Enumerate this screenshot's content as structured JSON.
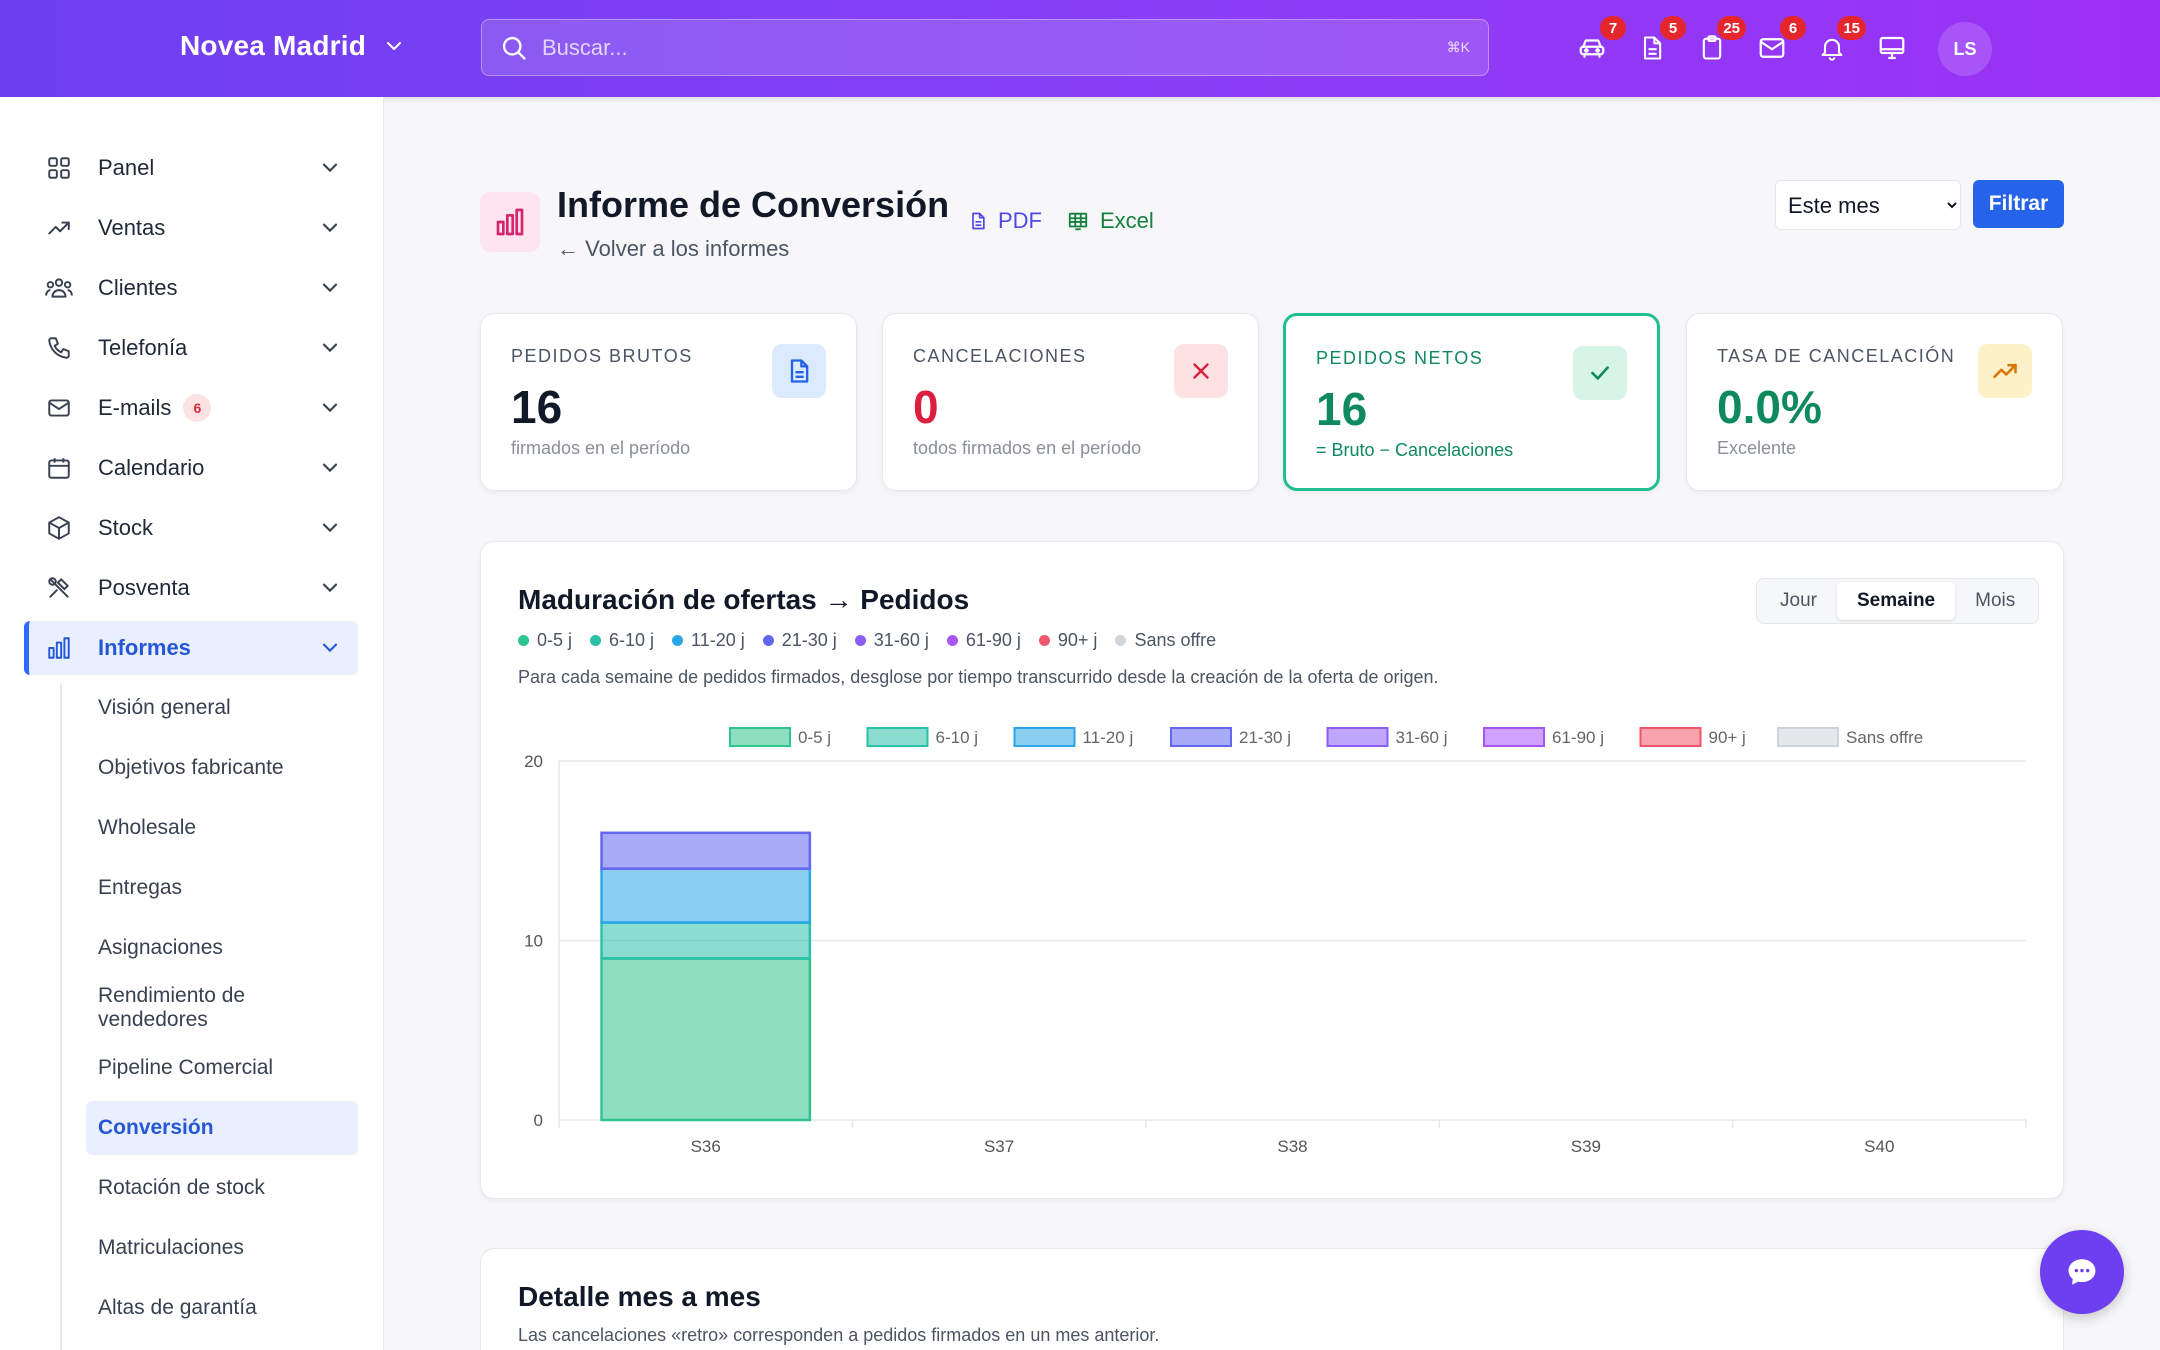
{
  "header": {
    "brand": "Novea Madrid",
    "search_placeholder": "Buscar...",
    "search_shortcut": "⌘K",
    "icons": [
      {
        "name": "car-icon",
        "badge": "7"
      },
      {
        "name": "document-icon",
        "badge": "5"
      },
      {
        "name": "clipboard-icon",
        "badge": "25"
      },
      {
        "name": "mail-icon",
        "badge": "6"
      },
      {
        "name": "bell-icon",
        "badge": "15"
      },
      {
        "name": "monitor-icon",
        "badge": ""
      }
    ],
    "avatar": "LS"
  },
  "sidebar": {
    "items": [
      {
        "label": "Panel",
        "icon": "grid-icon"
      },
      {
        "label": "Ventas",
        "icon": "trend-icon"
      },
      {
        "label": "Clientes",
        "icon": "users-icon"
      },
      {
        "label": "Telefonía",
        "icon": "phone-icon"
      },
      {
        "label": "E-mails",
        "icon": "mail-icon",
        "badge": "6"
      },
      {
        "label": "Calendario",
        "icon": "calendar-icon"
      },
      {
        "label": "Stock",
        "icon": "box-icon"
      },
      {
        "label": "Posventa",
        "icon": "tools-icon"
      },
      {
        "label": "Informes",
        "icon": "bar-chart-icon",
        "active": true
      }
    ],
    "sub_items": [
      "Visión general",
      "Objetivos fabricante",
      "Wholesale",
      "Entregas",
      "Asignaciones",
      "Rendimiento de vendedores",
      "Pipeline Comercial",
      "Conversión",
      "Rotación de stock",
      "Matriculaciones",
      "Altas de garantía"
    ],
    "active_sub": "Conversión"
  },
  "page": {
    "title": "Informe de Conversión",
    "back": "← Volver a los informes",
    "pdf": "PDF",
    "excel": "Excel",
    "period": "Este mes",
    "filter": "Filtrar"
  },
  "stats": [
    {
      "label": "PEDIDOS BRUTOS",
      "value": "16",
      "sub": "firmados en el período",
      "color": "#111827",
      "icon": "document-icon"
    },
    {
      "label": "CANCELACIONES",
      "value": "0",
      "sub": "todos firmados en el período",
      "color": "#dc1f3c",
      "icon": "x-icon"
    },
    {
      "label": "PEDIDOS NETOS",
      "value": "16",
      "sub": "= Bruto − Cancelaciones",
      "color": "#0f8a5f",
      "icon": "check-icon"
    },
    {
      "label": "TASA DE CANCELACIÓN",
      "value": "0.0%",
      "sub": "Excelente",
      "color": "#0f8a5f",
      "icon": "trend-up-icon"
    }
  ],
  "maturation": {
    "title": "Maduración de ofertas → Pedidos",
    "toggle": [
      "Jour",
      "Semaine",
      "Mois"
    ],
    "toggle_selected": "Semaine",
    "description": "Para cada semaine de pedidos firmados, desglose por tiempo transcurrido desde la creación de la oferta de origen."
  },
  "chart_data": {
    "type": "bar",
    "stacked": true,
    "categories": [
      "S36",
      "S37",
      "S38",
      "S39",
      "S40"
    ],
    "series": [
      {
        "name": "0-5 j",
        "values": [
          9,
          0,
          0,
          0,
          0
        ],
        "color": "#2fc48d"
      },
      {
        "name": "6-10 j",
        "values": [
          2,
          0,
          0,
          0,
          0
        ],
        "color": "#2ac1a8"
      },
      {
        "name": "11-20 j",
        "values": [
          3,
          0,
          0,
          0,
          0
        ],
        "color": "#2aa6e6"
      },
      {
        "name": "21-30 j",
        "values": [
          2,
          0,
          0,
          0,
          0
        ],
        "color": "#6366f1"
      },
      {
        "name": "31-60 j",
        "values": [
          0,
          0,
          0,
          0,
          0
        ],
        "color": "#8b5cf6"
      },
      {
        "name": "61-90 j",
        "values": [
          0,
          0,
          0,
          0,
          0
        ],
        "color": "#a855f7"
      },
      {
        "name": "90+ j",
        "values": [
          0,
          0,
          0,
          0,
          0
        ],
        "color": "#f0566a"
      },
      {
        "name": "Sans offre",
        "values": [
          0,
          0,
          0,
          0,
          0
        ],
        "color": "#cfd3da"
      }
    ],
    "ylim": [
      0,
      20
    ],
    "yticks": [
      0,
      10,
      20
    ],
    "grid": true,
    "legend": "top"
  },
  "detail": {
    "title": "Detalle mes a mes",
    "description": "Las cancelaciones «retro» corresponden a pedidos firmados en un mes anterior."
  }
}
